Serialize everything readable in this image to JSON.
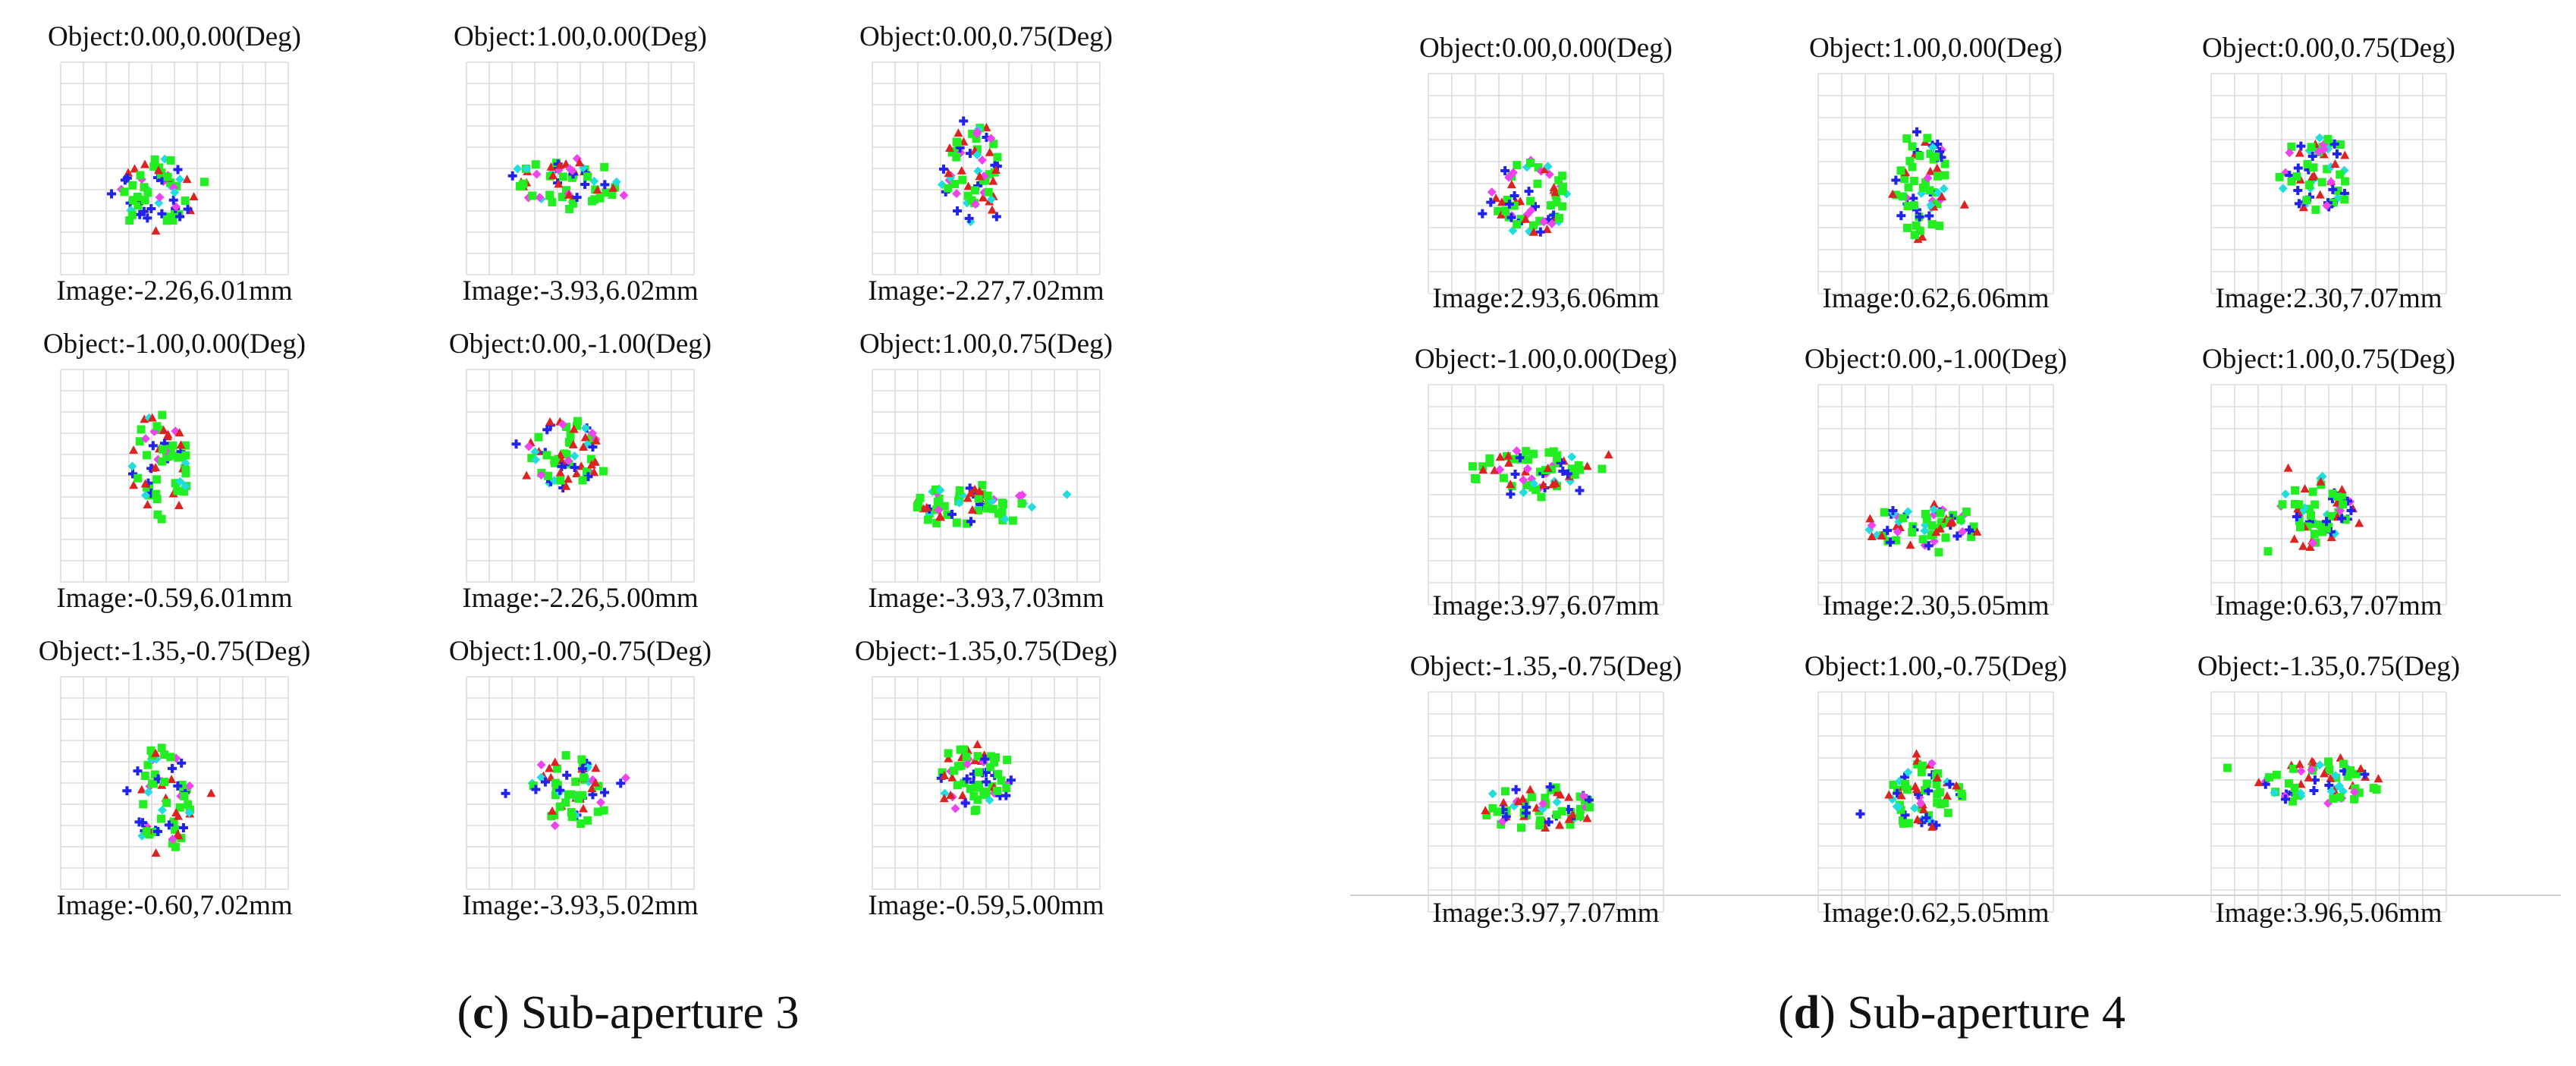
{
  "panels": [
    {
      "id": "c",
      "caption": {
        "letter": "c",
        "text": "Sub-aperture 3"
      },
      "cells": [
        {
          "object": "Object:0.00,0.00(Deg)",
          "image": "Image:-2.26,6.01mm",
          "shape": "blob"
        },
        {
          "object": "Object:1.00,0.00(Deg)",
          "image": "Image:-3.93,6.02mm",
          "shape": "flat"
        },
        {
          "object": "Object:0.00,0.75(Deg)",
          "image": "Image:-2.27,7.02mm",
          "shape": "tall"
        },
        {
          "object": "Object:-1.00,0.00(Deg)",
          "image": "Image:-0.59,6.01mm",
          "shape": "tall"
        },
        {
          "object": "Object:0.00,-1.00(Deg)",
          "image": "Image:-2.26,5.00mm",
          "shape": "blob"
        },
        {
          "object": "Object:1.00,0.75(Deg)",
          "image": "Image:-3.93,7.03mm",
          "shape": "flat"
        },
        {
          "object": "Object:-1.35,-0.75(Deg)",
          "image": "Image:-0.60,7.02mm",
          "shape": "tall"
        },
        {
          "object": "Object:1.00,-0.75(Deg)",
          "image": "Image:-3.93,5.02mm",
          "shape": "blob"
        },
        {
          "object": "Object:-1.35,0.75(Deg)",
          "image": "Image:-0.59,5.00mm",
          "shape": "blob"
        }
      ]
    },
    {
      "id": "d",
      "caption": {
        "letter": "d",
        "text": "Sub-aperture 4"
      },
      "cells": [
        {
          "object": "Object:0.00,0.00(Deg)",
          "image": "Image:2.93,6.06mm",
          "shape": "blob"
        },
        {
          "object": "Object:1.00,0.00(Deg)",
          "image": "Image:0.62,6.06mm",
          "shape": "tall"
        },
        {
          "object": "Object:0.00,0.75(Deg)",
          "image": "Image:2.30,7.07mm",
          "shape": "blob"
        },
        {
          "object": "Object:-1.00,0.00(Deg)",
          "image": "Image:3.97,6.07mm",
          "shape": "flat"
        },
        {
          "object": "Object:0.00,-1.00(Deg)",
          "image": "Image:2.30,5.05mm",
          "shape": "flat"
        },
        {
          "object": "Object:1.00,0.75(Deg)",
          "image": "Image:0.63,7.07mm",
          "shape": "blob"
        },
        {
          "object": "Object:-1.35,-0.75(Deg)",
          "image": "Image:3.97,7.07mm",
          "shape": "flat"
        },
        {
          "object": "Object:1.00,-0.75(Deg)",
          "image": "Image:0.62,5.05mm",
          "shape": "blob"
        },
        {
          "object": "Object:-1.35,0.75(Deg)",
          "image": "Image:3.96,5.06mm",
          "shape": "flat"
        }
      ]
    }
  ],
  "marker_colors": {
    "green": "#22ee22",
    "red": "#dd2222",
    "blue": "#2222ee",
    "cyan": "#22dddd",
    "magenta": "#ee44ee"
  },
  "grid_divisions": 10
}
